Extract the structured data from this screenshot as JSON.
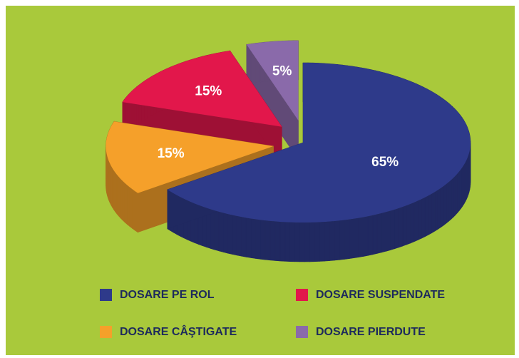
{
  "chart_data": {
    "type": "pie",
    "categories": [
      "DOSARE PE ROL",
      "DOSARE CÂŞTIGATE",
      "DOSARE SUSPENDATE",
      "DOSARE PIERDUTE"
    ],
    "values": [
      65,
      15,
      15,
      5
    ],
    "value_labels": [
      "65%",
      "15%",
      "15%",
      "5%"
    ],
    "colors": [
      "#2e3a8a",
      "#f5a02a",
      "#e2174b",
      "#8a6aaa"
    ]
  }
}
